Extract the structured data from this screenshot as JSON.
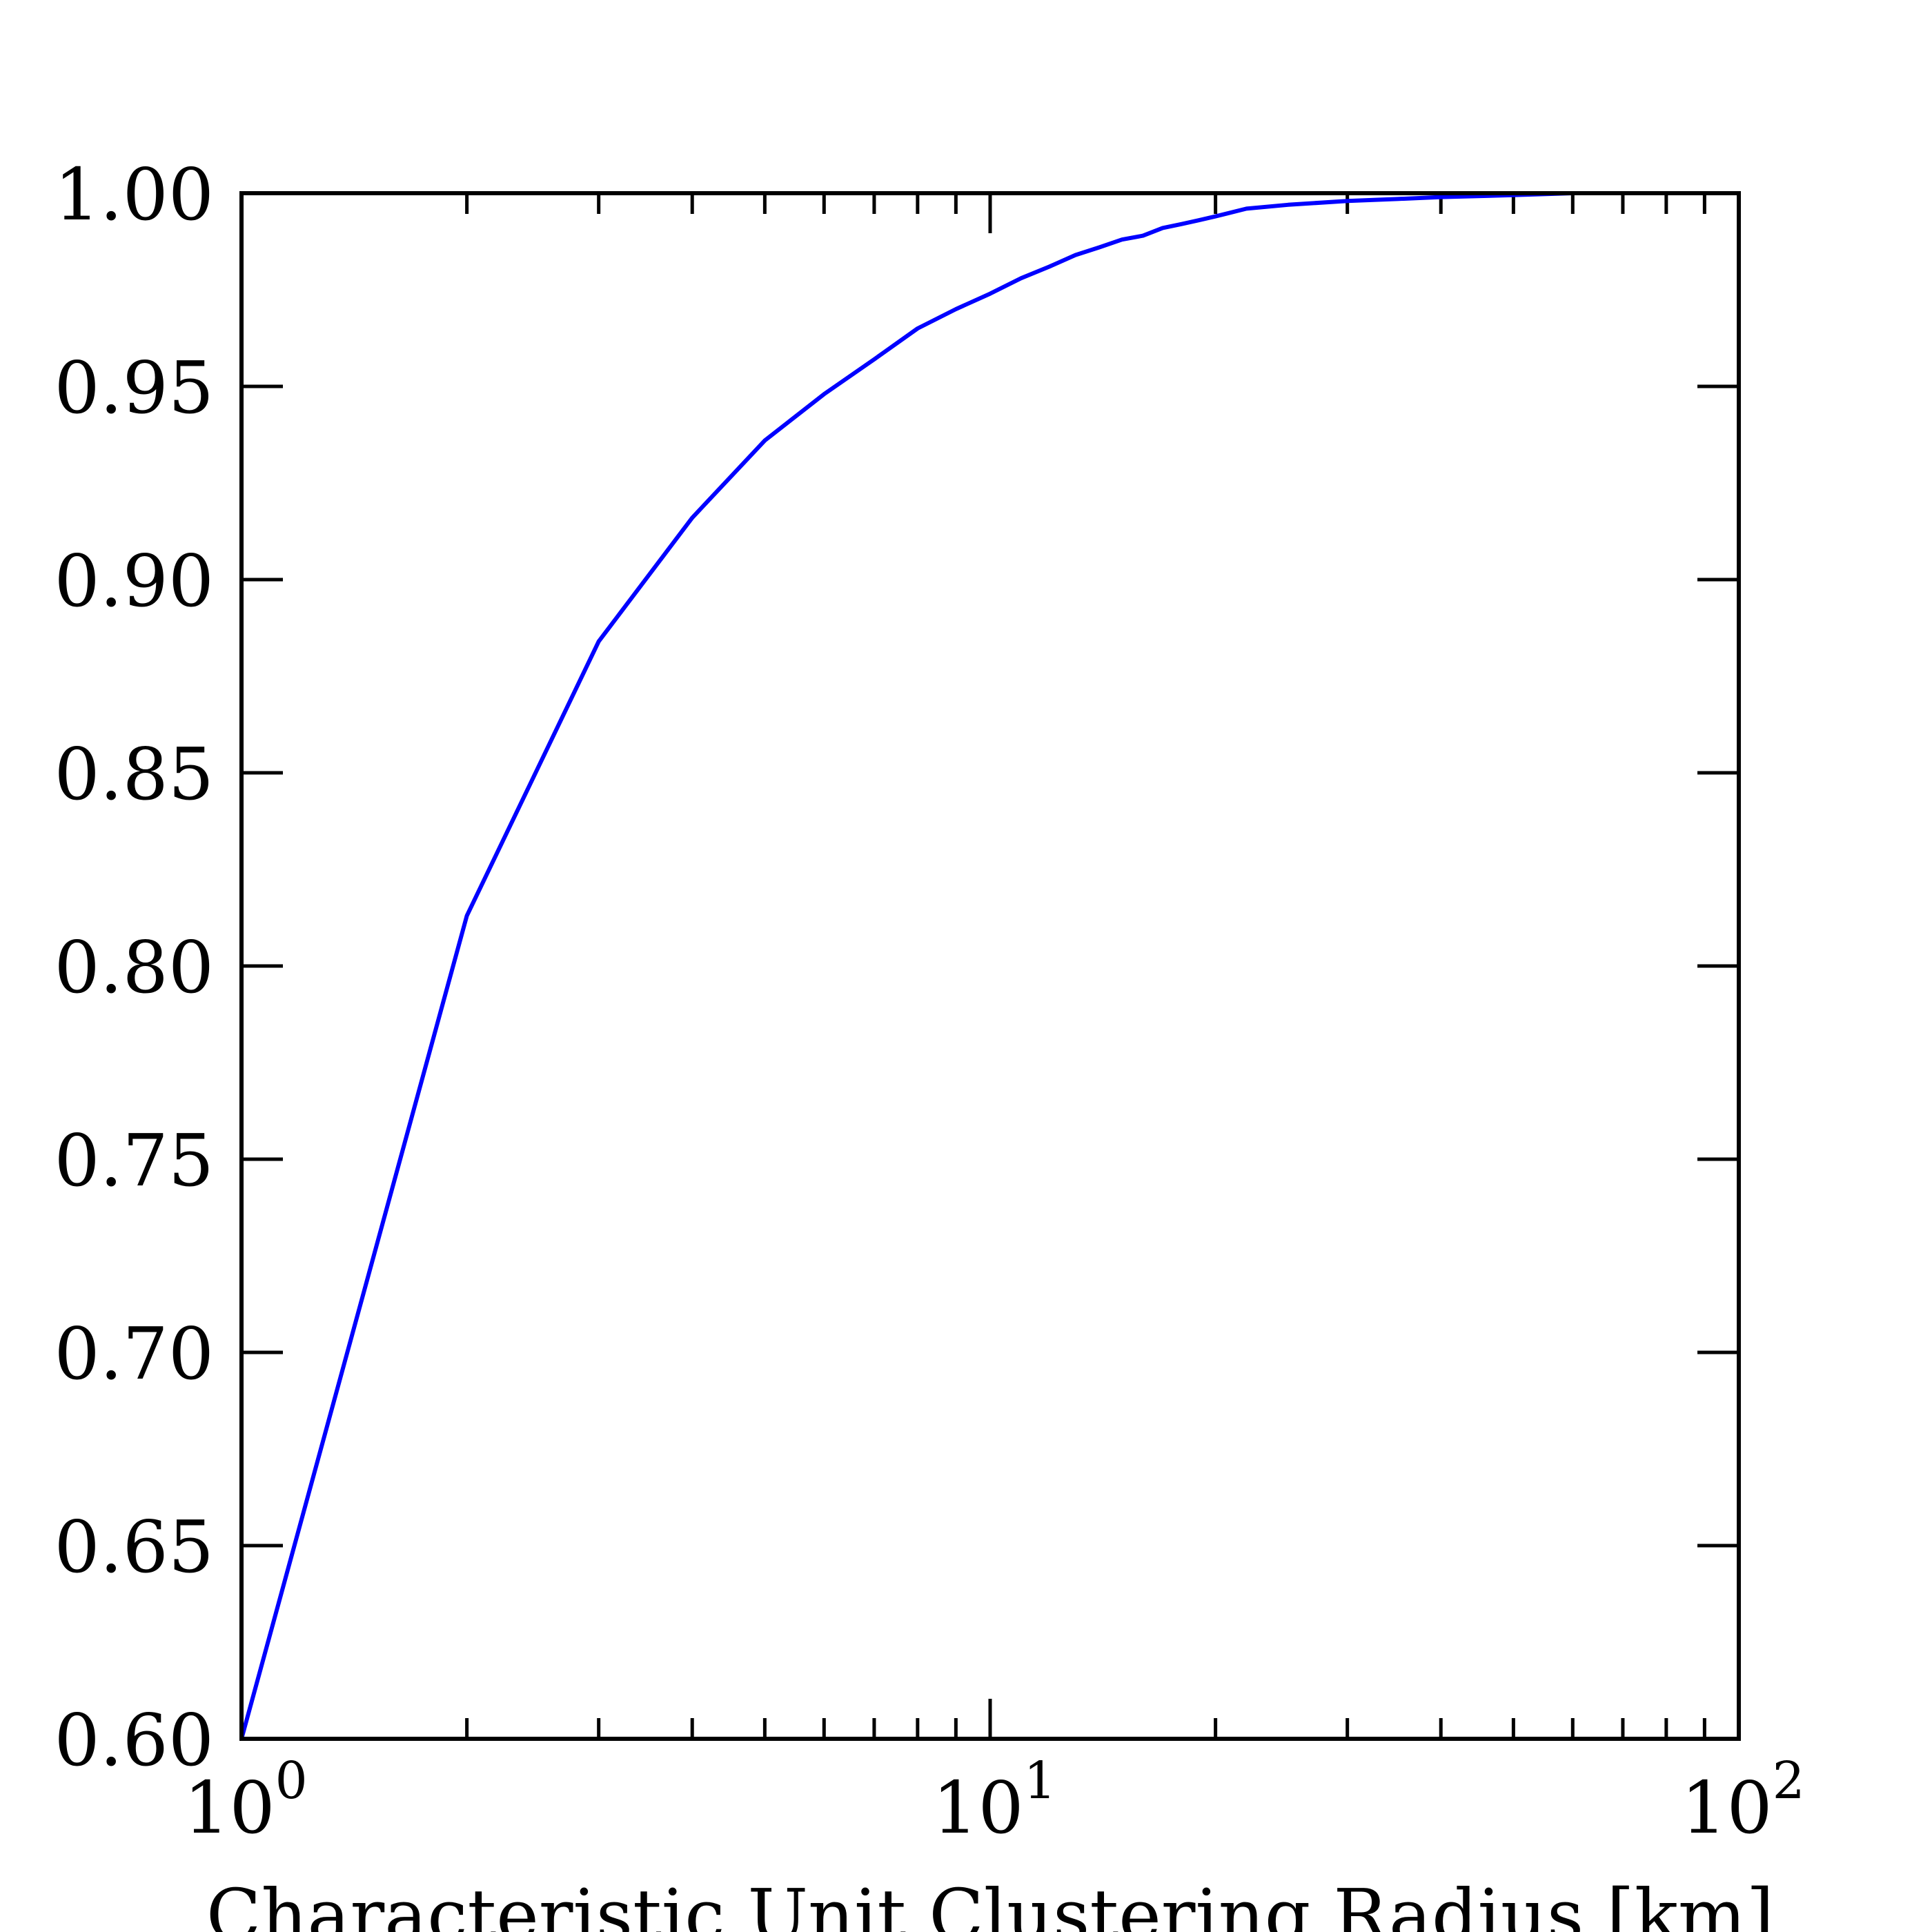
{
  "chart_data": {
    "type": "line",
    "title": "",
    "xlabel": "Characteristic Unit Clustering Radius [km]",
    "ylabel": "",
    "x_scale": "log",
    "xlim": [
      1,
      100
    ],
    "ylim": [
      0.6,
      1.0
    ],
    "grid": false,
    "legend": "none",
    "x_ticks": [
      {
        "value": 1,
        "base": "10",
        "exp": "0"
      },
      {
        "value": 10,
        "base": "10",
        "exp": "1"
      },
      {
        "value": 100,
        "base": "10",
        "exp": "2"
      }
    ],
    "y_ticks": [
      {
        "value": 0.6,
        "label": "0.60"
      },
      {
        "value": 0.65,
        "label": "0.65"
      },
      {
        "value": 0.7,
        "label": "0.70"
      },
      {
        "value": 0.75,
        "label": "0.75"
      },
      {
        "value": 0.8,
        "label": "0.80"
      },
      {
        "value": 0.85,
        "label": "0.85"
      },
      {
        "value": 0.9,
        "label": "0.90"
      },
      {
        "value": 0.95,
        "label": "0.95"
      },
      {
        "value": 1.0,
        "label": "1.00"
      }
    ],
    "series": [
      {
        "color": "#0000ff",
        "x": [
          1.0,
          2.0,
          3.0,
          4.0,
          5.0,
          6.0,
          7.0,
          8.0,
          9.0,
          10.0,
          11.0,
          12.0,
          13.0,
          14.0,
          15.0,
          16.0,
          17.0,
          18.0,
          19.0,
          20.0,
          22.0,
          25.0,
          30.0,
          35.0,
          40.0,
          50.0,
          60.0
        ],
        "y": [
          0.6,
          0.813,
          0.884,
          0.916,
          0.936,
          0.948,
          0.957,
          0.965,
          0.97,
          0.974,
          0.978,
          0.981,
          0.984,
          0.986,
          0.988,
          0.989,
          0.991,
          0.992,
          0.993,
          0.994,
          0.996,
          0.997,
          0.998,
          0.9985,
          0.999,
          0.9995,
          1.0
        ]
      }
    ]
  }
}
